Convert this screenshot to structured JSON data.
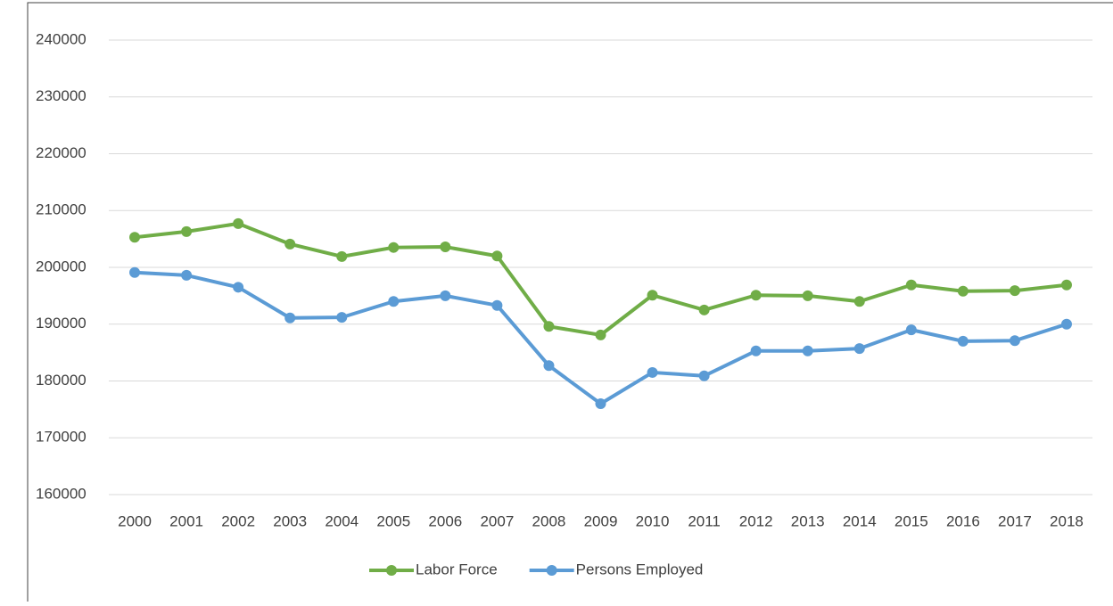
{
  "chart_data": {
    "type": "line",
    "categories": [
      "2000",
      "2001",
      "2002",
      "2003",
      "2004",
      "2005",
      "2006",
      "2007",
      "2008",
      "2009",
      "2010",
      "2011",
      "2012",
      "2013",
      "2014",
      "2015",
      "2016",
      "2017",
      "2018"
    ],
    "series": [
      {
        "name": "Labor Force",
        "color": "#70ad47",
        "values": [
          205300,
          206300,
          207700,
          204100,
          201900,
          203500,
          203600,
          202000,
          189600,
          188100,
          195100,
          192500,
          195100,
          195000,
          194000,
          196900,
          195800,
          195900,
          196900
        ]
      },
      {
        "name": "Persons Employed",
        "color": "#5b9bd5",
        "values": [
          199100,
          198600,
          196500,
          191100,
          191200,
          194000,
          195000,
          193300,
          182700,
          176000,
          181500,
          180900,
          185300,
          185300,
          185700,
          189000,
          187000,
          187100,
          190000
        ]
      }
    ],
    "ylim": [
      160000,
      240000
    ],
    "yticks": [
      160000,
      170000,
      180000,
      190000,
      200000,
      210000,
      220000,
      230000,
      240000
    ],
    "grid": true,
    "legend": "bottom"
  }
}
